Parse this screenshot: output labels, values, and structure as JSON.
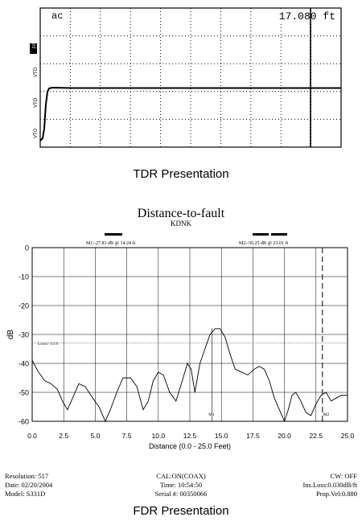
{
  "tdr": {
    "mode_label": "ac",
    "distance_readout": "17.080 ft",
    "tick_labels": [
      "FRB",
      "VTO",
      "VTO",
      "VTO"
    ],
    "caption": "TDR Presentation",
    "marker_distance_ft": 17.08
  },
  "chart_data": {
    "type": "line",
    "title": "Distance-to-fault",
    "subtitle": "KDNK",
    "xlabel": "Distance (0.0 - 25.0 Feet)",
    "ylabel": "dB",
    "xlim": [
      0,
      25
    ],
    "ylim": [
      -60,
      0
    ],
    "grid": true,
    "x_ticks": [
      "0.0",
      "2.5",
      "5.0",
      "7.5",
      "10.0",
      "12.5",
      "15.0",
      "17.5",
      "20.0",
      "22.5",
      "25.0"
    ],
    "y_ticks": [
      "0",
      "-10",
      "-20",
      "-30",
      "-40",
      "-50",
      "-60"
    ],
    "marker_labels": {
      "m1": "M1:-27.83 dB @ 14.24 ft",
      "m2": "M2:-50.25 dB @ 23.01 ft",
      "limit": "Limit:-33.0",
      "m1_short": "M1",
      "m2_short": "M2"
    },
    "markers": [
      {
        "name": "M1",
        "x": 14.24,
        "y": -27.83
      },
      {
        "name": "M2",
        "x": 23.01,
        "y": -50.25
      }
    ],
    "series": [
      {
        "x": [
          0,
          0.5,
          1.0,
          1.5,
          2.0,
          2.4,
          2.8,
          3.2,
          3.7,
          4.2,
          4.8,
          5.3,
          5.8,
          6.2,
          6.7,
          7.2,
          7.8,
          8.3,
          8.8,
          9.2,
          9.6,
          10.0,
          10.4,
          10.9,
          11.4,
          11.9,
          12.3,
          12.6,
          12.9,
          13.3,
          13.7,
          14.1,
          14.5,
          14.9,
          15.3,
          15.7,
          16.1,
          16.6,
          17.1,
          17.6,
          18.0,
          18.4,
          18.8,
          19.2,
          19.6,
          20.0,
          20.3,
          20.6,
          20.9,
          21.3,
          21.7,
          22.1,
          22.5,
          22.9,
          23.3,
          23.7,
          24.1,
          24.5,
          25.0
        ],
        "y": [
          -39,
          -43,
          -46,
          -47,
          -49,
          -53,
          -56,
          -52,
          -47,
          -48,
          -52,
          -55,
          -60,
          -56,
          -50,
          -45,
          -45,
          -48,
          -56,
          -53,
          -46,
          -43,
          -44,
          -50,
          -53,
          -46,
          -40,
          -42,
          -50,
          -40,
          -35,
          -30,
          -28,
          -28,
          -31,
          -37,
          -42,
          -43,
          -44,
          -42,
          -41,
          -42,
          -46,
          -52,
          -56,
          -60,
          -56,
          -51,
          -50,
          -53,
          -57,
          -58,
          -54,
          -51,
          -50,
          -53,
          -52,
          -51,
          -51
        ]
      }
    ]
  },
  "footer": {
    "left": [
      "Resolution: 517",
      "Date: 02/20/2004",
      "Model: S331D"
    ],
    "center": [
      "CAL:ON(COAX)",
      "Time: 10:54:50",
      "Serial #: 00350066"
    ],
    "right": [
      "CW: OFF",
      "Ins.Loss:0.030dB/ft",
      "Prop.Vel:0.880"
    ]
  },
  "fdr_caption": "FDR Presentation"
}
